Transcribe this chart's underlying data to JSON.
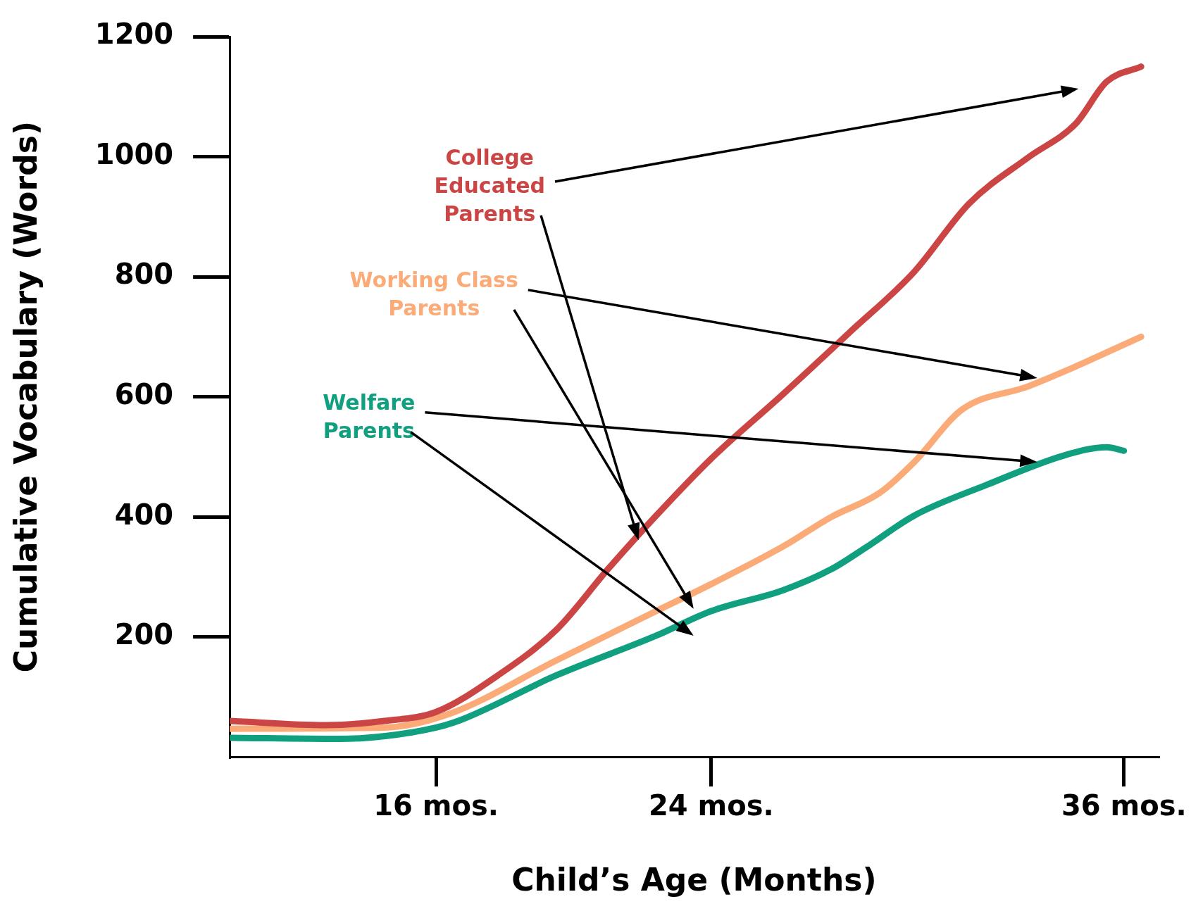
{
  "chart_data": {
    "type": "line",
    "xlabel": "Child’s Age (Months)",
    "ylabel": "Cumulative Vocabulary (Words)",
    "xlim": [
      10,
      37
    ],
    "xticks": [
      {
        "value": 16,
        "label": "16 mos."
      },
      {
        "value": 24,
        "label": "24 mos."
      },
      {
        "value": 36,
        "label": "36 mos."
      }
    ],
    "ylim": [
      0,
      1200
    ],
    "yticks": [
      200,
      400,
      600,
      800,
      1000,
      1200
    ],
    "grid": false,
    "marker": "none",
    "line_style": "solid",
    "series": [
      {
        "name": "College Educated Parents",
        "color": "#cc4545",
        "x": [
          10,
          12.8,
          14.5,
          16,
          17.8,
          19.5,
          21,
          22.4,
          24,
          26.1,
          28,
          29.9,
          31.5,
          33.2,
          34.6,
          35.5,
          36.5
        ],
        "values": [
          60,
          53,
          60,
          75,
          136,
          212,
          313,
          402,
          497,
          605,
          706,
          808,
          922,
          998,
          1055,
          1125,
          1150
        ]
      },
      {
        "name": "Working Class Parents",
        "color": "#fbab78",
        "x": [
          10,
          14.5,
          16.4,
          19.5,
          22.4,
          24,
          26.1,
          27.5,
          28.9,
          29.9,
          31.3,
          33.2,
          34.3,
          36.5
        ],
        "values": [
          47,
          49,
          72,
          161,
          243,
          288,
          351,
          400,
          440,
          491,
          579,
          617,
          643,
          700
        ]
      },
      {
        "name": "Welfare Parents",
        "color": "#11a07f",
        "x": [
          10,
          13.2,
          15.3,
          16.5,
          19.5,
          22.4,
          24,
          26.1,
          27.5,
          28.5,
          29.9,
          32,
          34.3,
          35.5,
          36
        ],
        "values": [
          32,
          30,
          41,
          57,
          136,
          202,
          243,
          278,
          313,
          349,
          402,
          453,
          503,
          516,
          510
        ]
      }
    ]
  }
}
